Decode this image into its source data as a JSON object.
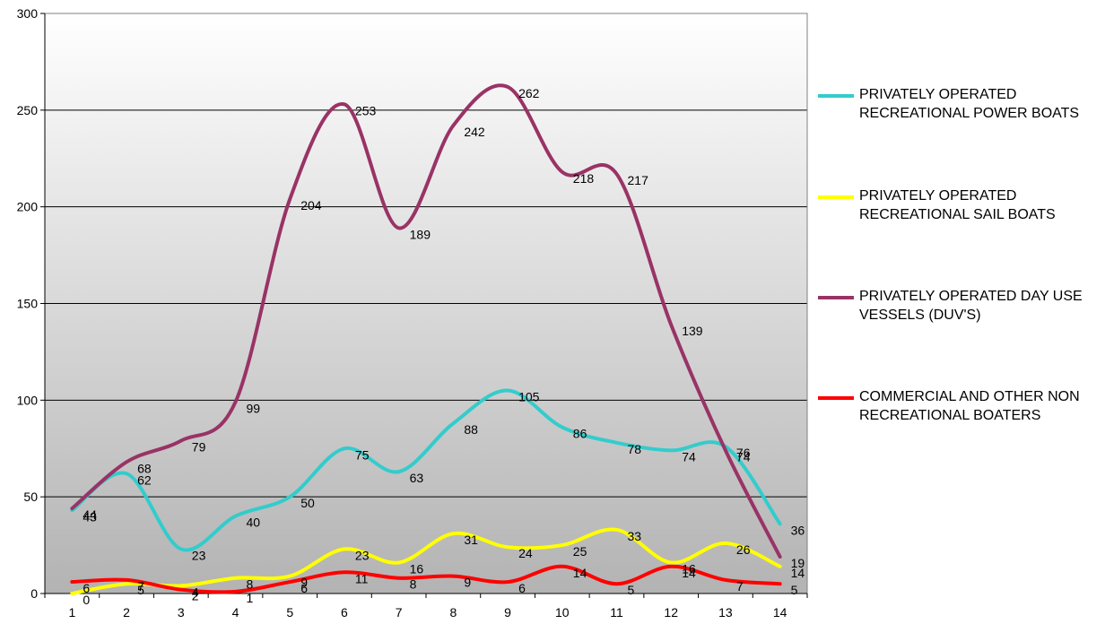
{
  "chart_data": {
    "type": "line",
    "title": "",
    "xlabel": "",
    "ylabel": "",
    "ylim": [
      0,
      300
    ],
    "yticks": [
      0,
      50,
      100,
      150,
      200,
      250,
      300
    ],
    "x": [
      1,
      2,
      3,
      4,
      5,
      6,
      7,
      8,
      9,
      10,
      11,
      12,
      13,
      14
    ],
    "grid": "horizontal",
    "legend_position": "right",
    "series": [
      {
        "name": "PRIVATELY OPERATED RECREATIONAL POWER BOATS",
        "color": "#33cccc",
        "values": [
          43,
          62,
          23,
          40,
          50,
          75,
          63,
          88,
          105,
          86,
          78,
          74,
          76,
          36
        ]
      },
      {
        "name": "PRIVATELY OPERATED RECREATIONAL SAIL BOATS",
        "color": "#ffff00",
        "values": [
          0,
          5,
          4,
          8,
          9,
          23,
          16,
          31,
          24,
          25,
          33,
          16,
          26,
          14
        ]
      },
      {
        "name": "PRIVATELY OPERATED DAY USE VESSELS (DUV'S)",
        "color": "#993366",
        "values": [
          44,
          68,
          79,
          99,
          204,
          253,
          189,
          242,
          262,
          218,
          217,
          139,
          74,
          19
        ]
      },
      {
        "name": "COMMERCIAL AND OTHER NON RECREATIONAL BOATERS",
        "color": "#ff0000",
        "values": [
          6,
          7,
          2,
          1,
          6,
          11,
          8,
          9,
          6,
          14,
          5,
          14,
          7,
          5
        ]
      }
    ]
  },
  "legend": {
    "items": [
      {
        "label": "PRIVATELY OPERATED RECREATIONAL POWER BOATS",
        "color": "#33cccc"
      },
      {
        "label": "PRIVATELY OPERATED RECREATIONAL SAIL BOATS",
        "color": "#ffff00"
      },
      {
        "label": "PRIVATELY OPERATED DAY USE VESSELS (DUV'S)",
        "color": "#993366"
      },
      {
        "label": "COMMERCIAL AND OTHER NON RECREATIONAL BOATERS",
        "color": "#ff0000"
      }
    ]
  }
}
